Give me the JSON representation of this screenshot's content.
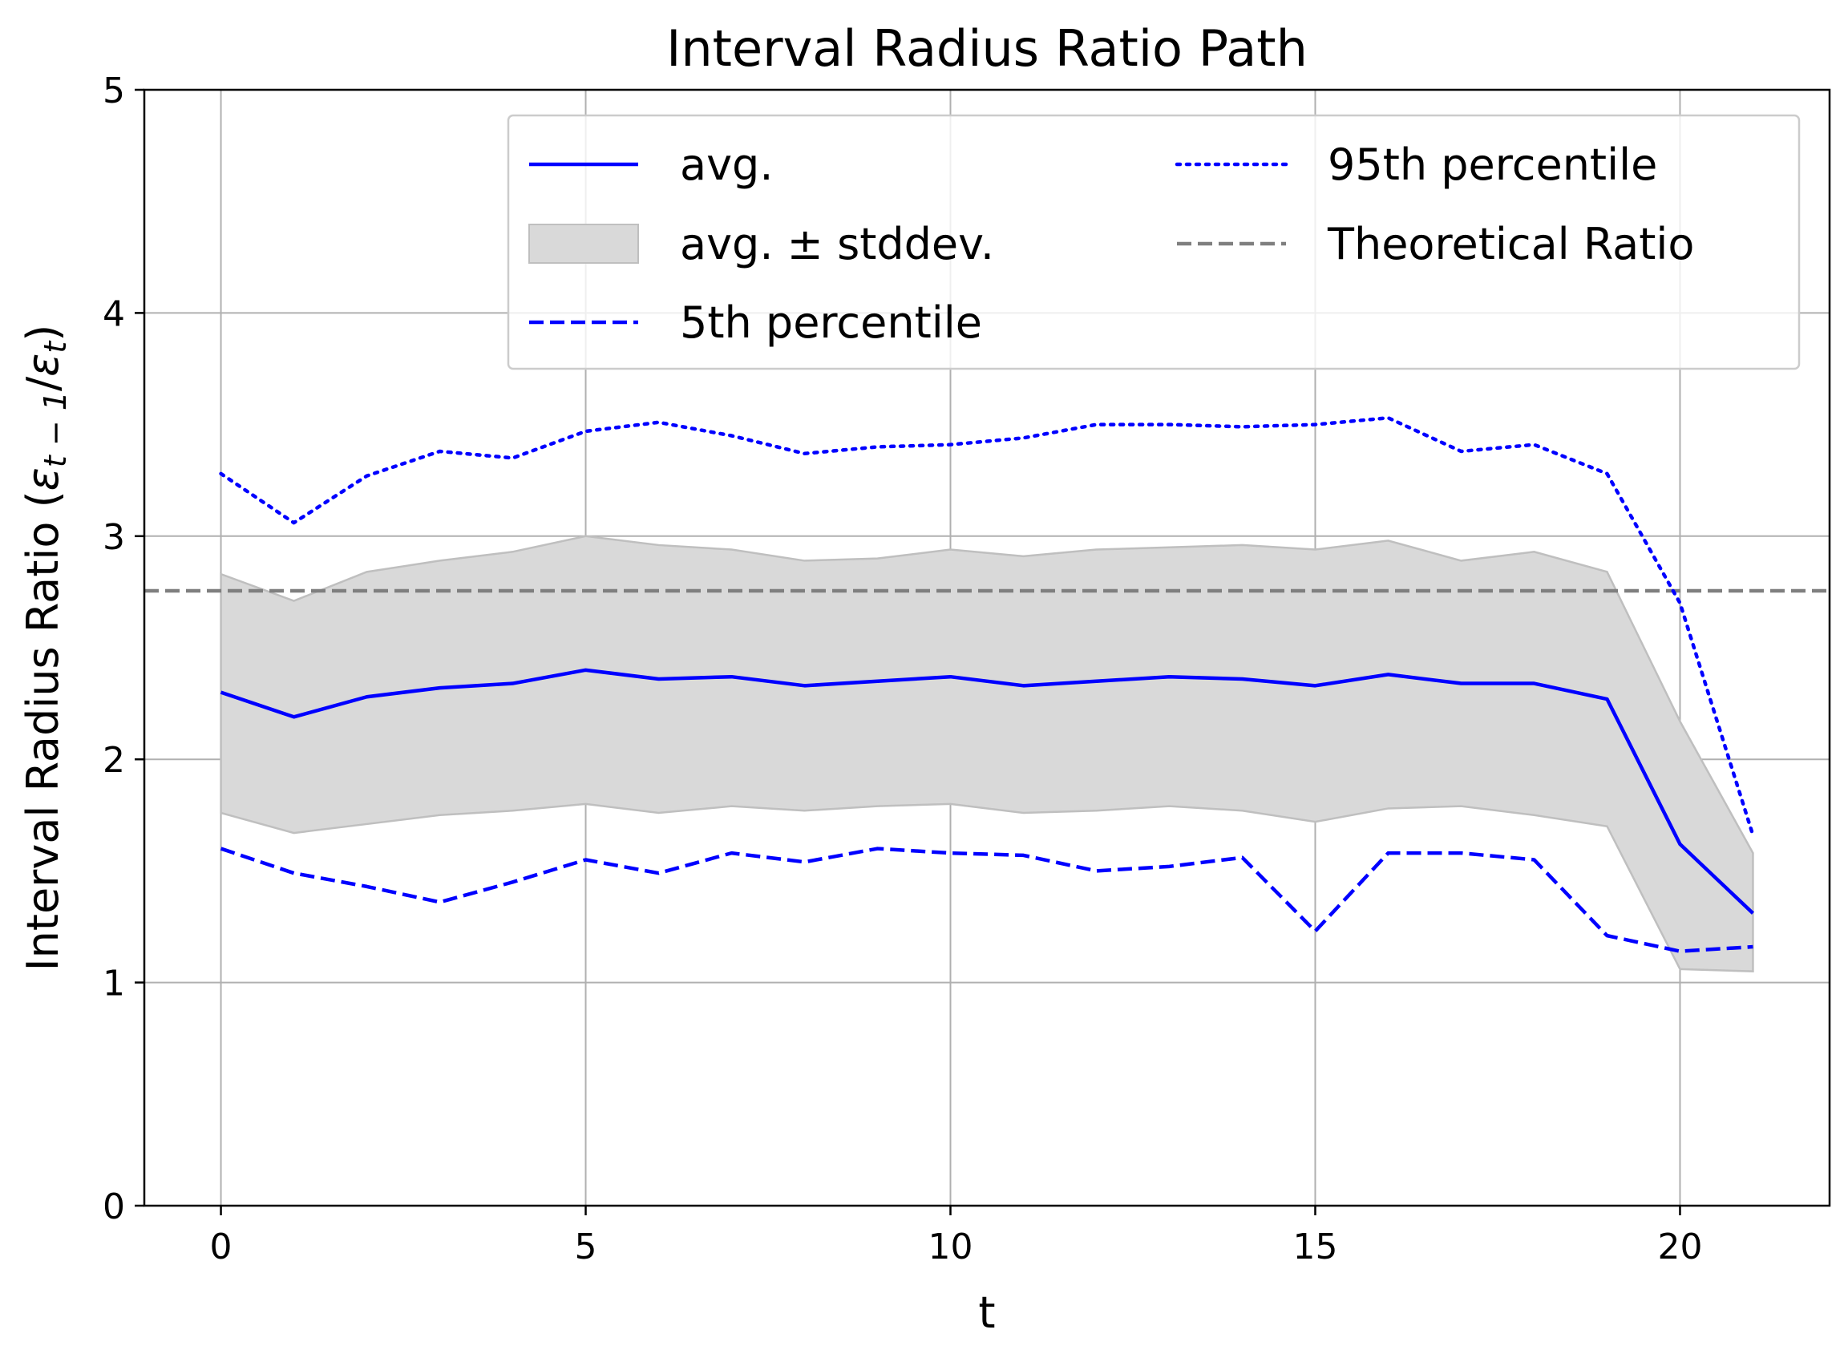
{
  "chart_data": {
    "type": "line",
    "title": "Interval Radius Ratio Path",
    "xlabel": "t",
    "ylabel": "Interval Radius Ratio (ε_{t−1}/ε_t)",
    "ylabel_parts": {
      "prefix": "Interval Radius Ratio (",
      "eps": "ε",
      "sub_num": "t − 1",
      "slash": "/",
      "sub_den": "t",
      "suffix": ")"
    },
    "xlim": [
      -1.05,
      22.05
    ],
    "ylim": [
      0,
      5
    ],
    "xticks": [
      0,
      5,
      10,
      15,
      20
    ],
    "yticks": [
      0,
      1,
      2,
      3,
      4,
      5
    ],
    "grid": true,
    "legend_position": "upper right",
    "legend_columns": 2,
    "x": [
      0,
      1,
      2,
      3,
      4,
      5,
      6,
      7,
      8,
      9,
      10,
      11,
      12,
      13,
      14,
      15,
      16,
      17,
      18,
      19,
      20,
      21
    ],
    "series": [
      {
        "name": "avg.",
        "style": "solid",
        "color": "#0000ff",
        "values": [
          2.3,
          2.19,
          2.28,
          2.32,
          2.34,
          2.4,
          2.36,
          2.37,
          2.33,
          2.35,
          2.37,
          2.33,
          2.35,
          2.37,
          2.36,
          2.33,
          2.38,
          2.34,
          2.34,
          2.27,
          1.62,
          1.31
        ]
      },
      {
        "name": "5th percentile",
        "style": "dashed",
        "color": "#0000ff",
        "values": [
          1.6,
          1.49,
          1.43,
          1.36,
          1.45,
          1.55,
          1.49,
          1.58,
          1.54,
          1.6,
          1.58,
          1.57,
          1.5,
          1.52,
          1.56,
          1.23,
          1.58,
          1.58,
          1.55,
          1.21,
          1.14,
          1.16
        ]
      },
      {
        "name": "95th percentile",
        "style": "dotted",
        "color": "#0000ff",
        "values": [
          3.28,
          3.06,
          3.27,
          3.38,
          3.35,
          3.47,
          3.51,
          3.45,
          3.37,
          3.4,
          3.41,
          3.44,
          3.5,
          3.5,
          3.49,
          3.5,
          3.53,
          3.38,
          3.41,
          3.28,
          2.7,
          1.66
        ]
      }
    ],
    "band": {
      "name": "avg. ± stddev.",
      "color": "#d9d9d9",
      "edge_color": "#bfbfbf",
      "lower": [
        1.76,
        1.67,
        1.71,
        1.75,
        1.77,
        1.8,
        1.76,
        1.79,
        1.77,
        1.79,
        1.8,
        1.76,
        1.77,
        1.79,
        1.77,
        1.72,
        1.78,
        1.79,
        1.75,
        1.7,
        1.06,
        1.05
      ],
      "upper": [
        2.83,
        2.71,
        2.84,
        2.89,
        2.93,
        3.0,
        2.96,
        2.94,
        2.89,
        2.9,
        2.94,
        2.91,
        2.94,
        2.95,
        2.96,
        2.94,
        2.98,
        2.89,
        2.93,
        2.84,
        2.17,
        1.58
      ]
    },
    "reference_line": {
      "name": "Theoretical Ratio",
      "style": "dashed",
      "color": "#7f7f7f",
      "y": 2.755
    },
    "legend_entries": [
      "avg.",
      "avg. ± stddev.",
      "5th percentile",
      "95th percentile",
      "Theoretical Ratio"
    ]
  }
}
